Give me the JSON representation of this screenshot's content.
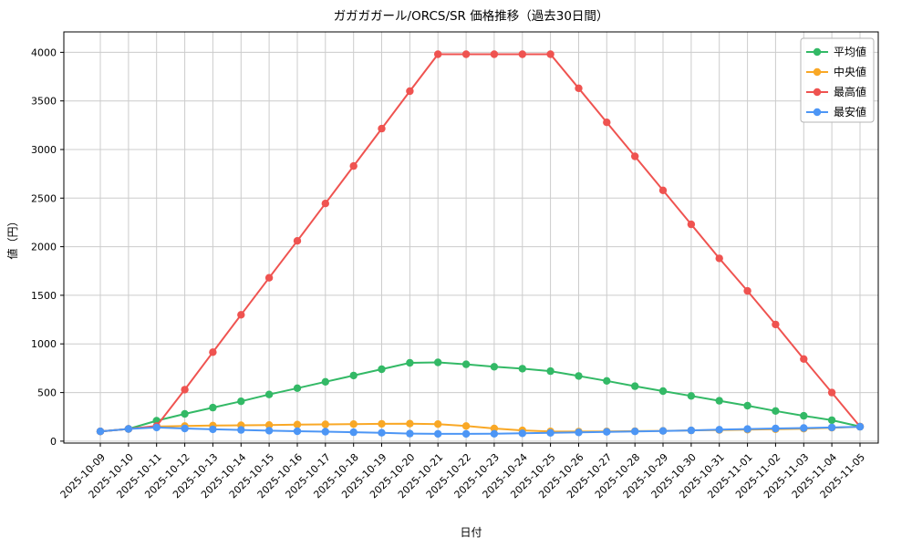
{
  "page": {
    "title": "ガガガガール/ORCS/SR 価格推移（過去30日間）"
  },
  "chart_data": {
    "type": "line",
    "title": "ガガガガール/ORCS/SR 価格推移（過去30日間）",
    "xlabel": "日付",
    "ylabel": "値（円）",
    "ylim": [
      -20,
      4210
    ],
    "yticks": [
      0,
      500,
      1000,
      1500,
      2000,
      2500,
      3000,
      3500,
      4000
    ],
    "grid": true,
    "legend_position": "top-right",
    "colors": {
      "average": "#33b966",
      "median": "#f9a826",
      "max": "#ef5350",
      "min": "#4d96f5",
      "gridline": "#cccccc",
      "axis": "#000000"
    },
    "categories": [
      "2025-10-09",
      "2025-10-10",
      "2025-10-11",
      "2025-10-12",
      "2025-10-13",
      "2025-10-14",
      "2025-10-15",
      "2025-10-16",
      "2025-10-17",
      "2025-10-18",
      "2025-10-19",
      "2025-10-20",
      "2025-10-21",
      "2025-10-22",
      "2025-10-23",
      "2025-10-24",
      "2025-10-25",
      "2025-10-26",
      "2025-10-27",
      "2025-10-28",
      "2025-10-29",
      "2025-10-30",
      "2025-10-31",
      "2025-11-01",
      "2025-11-02",
      "2025-11-03",
      "2025-11-04",
      "2025-11-05"
    ],
    "series": [
      {
        "name": "平均値",
        "color": "#33b966",
        "values": [
          100,
          125,
          210,
          280,
          345,
          410,
          480,
          545,
          610,
          675,
          740,
          805,
          810,
          790,
          765,
          745,
          720,
          670,
          620,
          565,
          515,
          465,
          415,
          365,
          310,
          260,
          215,
          150
        ]
      },
      {
        "name": "中央値",
        "color": "#f9a826",
        "values": [
          100,
          125,
          150,
          155,
          160,
          163,
          166,
          170,
          172,
          175,
          178,
          180,
          175,
          155,
          130,
          110,
          100,
          98,
          100,
          103,
          106,
          110,
          114,
          118,
          123,
          128,
          138,
          148
        ]
      },
      {
        "name": "最高値",
        "color": "#ef5350",
        "values": [
          100,
          125,
          155,
          530,
          915,
          1300,
          1680,
          2060,
          2445,
          2830,
          3215,
          3600,
          3980,
          3980,
          3980,
          3980,
          3980,
          3630,
          3280,
          2930,
          2580,
          2230,
          1880,
          1545,
          1200,
          845,
          500,
          150
        ]
      },
      {
        "name": "最安値",
        "color": "#4d96f5",
        "values": [
          100,
          125,
          140,
          130,
          122,
          115,
          108,
          102,
          97,
          92,
          86,
          78,
          75,
          75,
          76,
          80,
          85,
          90,
          95,
          100,
          105,
          110,
          118,
          124,
          130,
          135,
          140,
          148
        ]
      }
    ]
  }
}
